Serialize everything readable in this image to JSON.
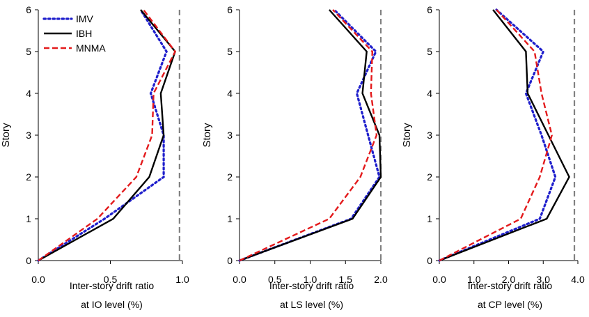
{
  "colors": {
    "IMV": "#1f1fcc",
    "IBH": "#000000",
    "MNMA": "#e31a1c",
    "limit": "#808080"
  },
  "chart_data": [
    {
      "type": "line",
      "xlabel": "Inter-story drift ratio",
      "xlabel2": "at IO level (%)",
      "ylabel": "Story",
      "xlim": [
        0,
        1.0
      ],
      "ylim": [
        0,
        6
      ],
      "xticks": [
        "0.0",
        "0.5",
        "1.0"
      ],
      "xtick_values": [
        0,
        0.5,
        1.0
      ],
      "yticks": [
        "0",
        "1",
        "2",
        "3",
        "4",
        "5",
        "6"
      ],
      "limit_line": 0.98,
      "legend": "top-left",
      "legend_entries": [
        "IMV",
        "IBH",
        "MNMA"
      ],
      "series": [
        {
          "name": "IMV",
          "style": "dotted",
          "y": [
            0,
            1,
            2,
            3,
            4,
            5,
            6
          ],
          "x": [
            0,
            0.46,
            0.87,
            0.87,
            0.78,
            0.89,
            0.71
          ]
        },
        {
          "name": "IBH",
          "style": "solid",
          "y": [
            0,
            1,
            2,
            3,
            4,
            5,
            6
          ],
          "x": [
            0,
            0.52,
            0.77,
            0.87,
            0.85,
            0.95,
            0.71
          ]
        },
        {
          "name": "MNMA",
          "style": "dashed",
          "y": [
            0,
            1,
            2,
            3,
            4,
            5,
            6
          ],
          "x": [
            0,
            0.41,
            0.68,
            0.79,
            0.8,
            0.95,
            0.73
          ]
        }
      ]
    },
    {
      "type": "line",
      "xlabel": "Inter-story drift ratio",
      "xlabel2": "at LS level (%)",
      "ylabel": "Story",
      "xlim": [
        0,
        2.0
      ],
      "ylim": [
        0,
        6
      ],
      "xticks": [
        "0.0",
        "0.5",
        "1.0",
        "1.5",
        "2.0"
      ],
      "xtick_values": [
        0,
        0.5,
        1.0,
        1.5,
        2.0
      ],
      "yticks": [
        "0",
        "1",
        "2",
        "3",
        "4",
        "5",
        "6"
      ],
      "limit_line": 2.0,
      "series": [
        {
          "name": "IMV",
          "style": "dotted",
          "y": [
            0,
            1,
            2,
            3,
            4,
            5,
            6
          ],
          "x": [
            0,
            1.58,
            1.98,
            1.82,
            1.66,
            1.93,
            1.34
          ]
        },
        {
          "name": "IBH",
          "style": "solid",
          "y": [
            0,
            1,
            2,
            3,
            4,
            5,
            6
          ],
          "x": [
            0,
            1.6,
            2.0,
            1.98,
            1.74,
            1.8,
            1.27
          ]
        },
        {
          "name": "MNMA",
          "style": "dashed",
          "y": [
            0,
            1,
            2,
            3,
            4,
            5,
            6
          ],
          "x": [
            0,
            1.27,
            1.71,
            1.94,
            1.86,
            1.88,
            1.32
          ]
        }
      ]
    },
    {
      "type": "line",
      "xlabel": "Inter-story drift ratio",
      "xlabel2": "at CP level (%)",
      "ylabel": "Story",
      "xlim": [
        0,
        4.0
      ],
      "ylim": [
        0,
        6
      ],
      "xticks": [
        "0.0",
        "1.0",
        "2.0",
        "3.0",
        "4.0"
      ],
      "xtick_values": [
        0,
        1.0,
        2.0,
        3.0,
        4.0
      ],
      "yticks": [
        "0",
        "1",
        "2",
        "3",
        "4",
        "5",
        "6"
      ],
      "limit_line": 3.9,
      "series": [
        {
          "name": "IMV",
          "style": "dotted",
          "y": [
            0,
            1,
            2,
            3,
            4,
            5,
            6
          ],
          "x": [
            0,
            2.9,
            3.35,
            2.95,
            2.5,
            3.0,
            1.65
          ]
        },
        {
          "name": "IBH",
          "style": "solid",
          "y": [
            0,
            1,
            2,
            3,
            4,
            5,
            6
          ],
          "x": [
            0,
            3.1,
            3.75,
            3.15,
            2.55,
            2.5,
            1.55
          ]
        },
        {
          "name": "MNMA",
          "style": "dashed",
          "y": [
            0,
            1,
            2,
            3,
            4,
            5,
            6
          ],
          "x": [
            0,
            2.35,
            2.9,
            3.25,
            2.95,
            2.75,
            1.65
          ]
        }
      ]
    }
  ]
}
